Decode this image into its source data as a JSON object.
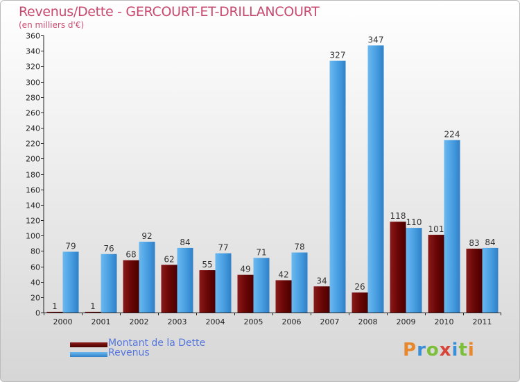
{
  "chart_data": {
    "type": "bar",
    "title": "Revenus/Dette - GERCOURT-ET-DRILLANCOURT",
    "subtitle": "(en milliers d'€)",
    "categories": [
      "2000",
      "2001",
      "2002",
      "2003",
      "2004",
      "2005",
      "2006",
      "2007",
      "2008",
      "2009",
      "2010",
      "2011"
    ],
    "series": [
      {
        "name": "Montant de la Dette",
        "color": "#7a1010",
        "values": [
          1,
          1,
          68,
          62,
          55,
          49,
          42,
          34,
          26,
          118,
          101,
          83
        ]
      },
      {
        "name": "Revenus",
        "color": "#4a9fe0",
        "values": [
          79,
          76,
          92,
          84,
          77,
          71,
          78,
          327,
          347,
          110,
          224,
          84
        ]
      }
    ],
    "ylim": [
      0,
      360
    ],
    "ytick_step": 20,
    "grid": false,
    "legend_position": "bottom-left"
  },
  "logo": {
    "letters": [
      "P",
      "r",
      "o",
      "x",
      "i",
      "t",
      "i"
    ],
    "colors": [
      "#e8882a",
      "#3a8fd8",
      "#7bbf3a",
      "#d8443a",
      "#3a8fd8",
      "#7bbf3a",
      "#e8882a"
    ]
  }
}
